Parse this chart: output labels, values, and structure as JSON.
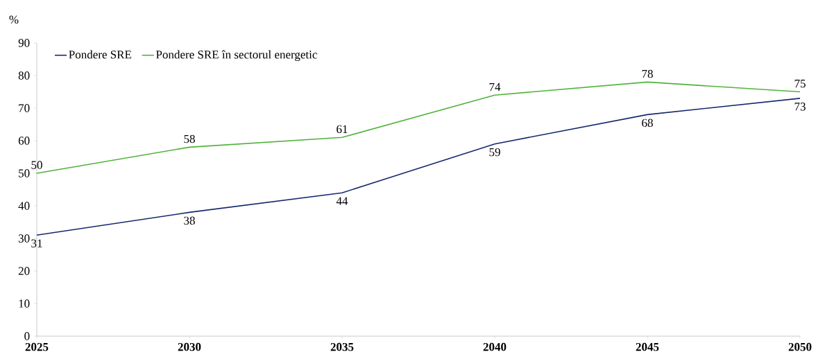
{
  "chart_data": {
    "type": "line",
    "ylabel": "%",
    "x": [
      2025,
      2030,
      2035,
      2040,
      2045,
      2050
    ],
    "series": [
      {
        "name": "Pondere SRE",
        "color": "#14286e",
        "values": [
          31,
          38,
          44,
          59,
          68,
          73
        ]
      },
      {
        "name": "Pondere SRE în sectorul energetic",
        "color": "#4fb33a",
        "values": [
          50,
          58,
          61,
          74,
          78,
          75
        ]
      }
    ],
    "xlim": [
      2025,
      2050
    ],
    "xticks": [
      2025,
      2030,
      2035,
      2040,
      2045,
      2050
    ],
    "ylim": [
      0,
      90
    ],
    "yticks": [
      0,
      10,
      20,
      30,
      40,
      50,
      60,
      70,
      80,
      90
    ],
    "data_labels": true,
    "legend": "top left",
    "marker": "none",
    "line_style": "solid"
  }
}
